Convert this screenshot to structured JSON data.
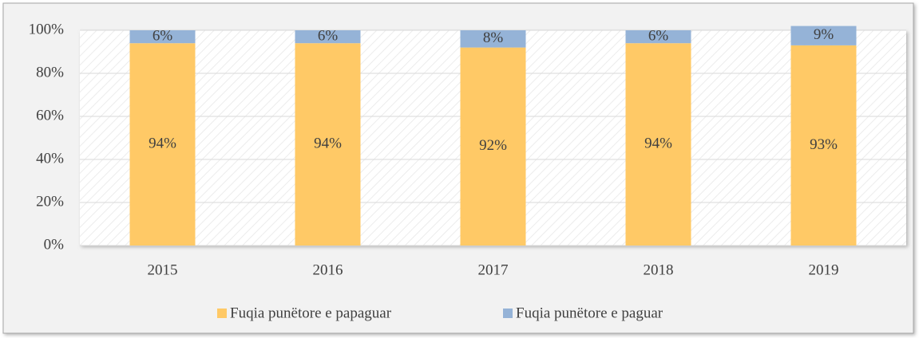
{
  "chart_data": {
    "type": "stacked_bar",
    "categories": [
      "2015",
      "2016",
      "2017",
      "2018",
      "2019"
    ],
    "series": [
      {
        "name": "Fuqia punëtore e papaguar",
        "color": "#ffc966",
        "values": [
          94,
          94,
          92,
          94,
          93
        ],
        "value_labels": [
          "94%",
          "94%",
          "92%",
          "94%",
          "93%"
        ]
      },
      {
        "name": "Fuqia punëtore e paguar",
        "color": "#95b3d7",
        "values": [
          6,
          6,
          8,
          6,
          9
        ],
        "value_labels": [
          "6%",
          "6%",
          "8%",
          "6%",
          "9%"
        ]
      }
    ],
    "ylim": [
      0,
      100
    ],
    "yticks": [
      {
        "value": 0,
        "label": "0%"
      },
      {
        "value": 20,
        "label": "20%"
      },
      {
        "value": 40,
        "label": "40%"
      },
      {
        "value": 60,
        "label": "60%"
      },
      {
        "value": 80,
        "label": "80%"
      },
      {
        "value": 100,
        "label": "100%"
      }
    ],
    "grid": true,
    "legend": "bottom"
  }
}
